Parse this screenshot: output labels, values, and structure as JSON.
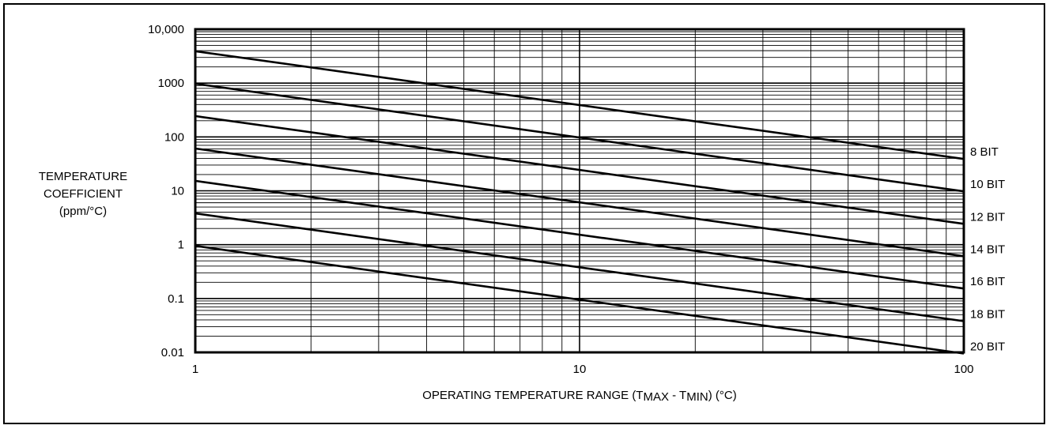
{
  "chart_data": {
    "type": "line",
    "xlabel": "OPERATING TEMPERATURE RANGE (T",
    "xlabel_sub1": "MAX",
    "xlabel_mid": " - T",
    "xlabel_sub2": "MIN",
    "xlabel_tail": ") (°C)",
    "ylabel": [
      "TEMPERATURE",
      "COEFFICIENT",
      "(ppm/°C)"
    ],
    "x_scale": "log",
    "y_scale": "log",
    "xlim": [
      1,
      100
    ],
    "ylim": [
      0.01,
      10000
    ],
    "x_ticks": [
      {
        "value": 1,
        "label": "1"
      },
      {
        "value": 10,
        "label": "10"
      },
      {
        "value": 100,
        "label": "100"
      }
    ],
    "y_ticks": [
      {
        "value": 10000,
        "label": "10,000"
      },
      {
        "value": 1000,
        "label": "1000"
      },
      {
        "value": 100,
        "label": "100"
      },
      {
        "value": 10,
        "label": "10"
      },
      {
        "value": 1,
        "label": "1"
      },
      {
        "value": 0.1,
        "label": "0.1"
      },
      {
        "value": 0.01,
        "label": "0.01"
      }
    ],
    "grid": true,
    "series": [
      {
        "name": "8 BIT",
        "x": [
          1,
          100
        ],
        "y": [
          3906,
          39.06
        ]
      },
      {
        "name": "10 BIT",
        "x": [
          1,
          100
        ],
        "y": [
          977,
          9.77
        ]
      },
      {
        "name": "12 BIT",
        "x": [
          1,
          100
        ],
        "y": [
          244,
          2.44
        ]
      },
      {
        "name": "14 BIT",
        "x": [
          1,
          100
        ],
        "y": [
          61,
          0.61
        ]
      },
      {
        "name": "16 BIT",
        "x": [
          1,
          100
        ],
        "y": [
          15.3,
          0.153
        ]
      },
      {
        "name": "18 BIT",
        "x": [
          1,
          100
        ],
        "y": [
          3.8,
          0.038
        ]
      },
      {
        "name": "20 BIT",
        "x": [
          1,
          100
        ],
        "y": [
          0.95,
          0.0095
        ]
      }
    ]
  }
}
